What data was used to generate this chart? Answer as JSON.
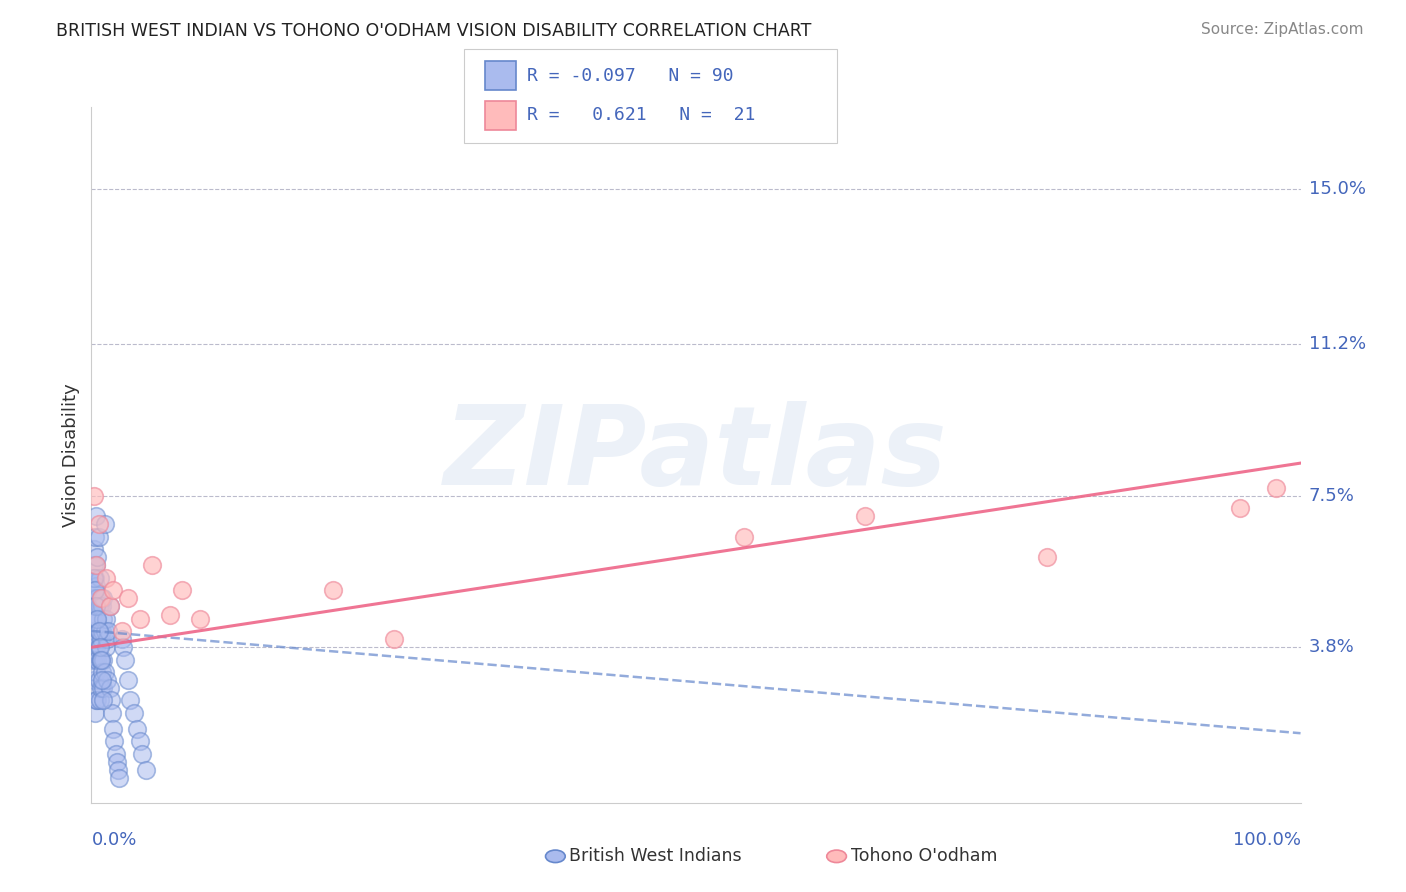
{
  "title": "BRITISH WEST INDIAN VS TOHONO O'ODHAM VISION DISABILITY CORRELATION CHART",
  "source": "Source: ZipAtlas.com",
  "ylabel": "Vision Disability",
  "color_blue_fill": "#AABBEE",
  "color_blue_edge": "#6688CC",
  "color_pink_fill": "#FFBBBB",
  "color_pink_edge": "#EE8899",
  "color_blue_line": "#6688CC",
  "color_pink_line": "#EE6688",
  "color_label": "#4466BB",
  "ytick_labels": [
    "3.8%",
    "7.5%",
    "11.2%",
    "15.0%"
  ],
  "ytick_values": [
    0.038,
    0.075,
    0.112,
    0.15
  ],
  "xlim": [
    0.0,
    1.0
  ],
  "ylim": [
    0.0,
    0.17
  ],
  "blue_slope": -0.025,
  "blue_intercept": 0.042,
  "pink_slope": 0.045,
  "pink_intercept": 0.038,
  "blue_x": [
    0.001,
    0.001,
    0.001,
    0.001,
    0.001,
    0.002,
    0.002,
    0.002,
    0.002,
    0.002,
    0.002,
    0.002,
    0.003,
    0.003,
    0.003,
    0.003,
    0.003,
    0.003,
    0.003,
    0.004,
    0.004,
    0.004,
    0.004,
    0.004,
    0.004,
    0.004,
    0.005,
    0.005,
    0.005,
    0.005,
    0.005,
    0.005,
    0.006,
    0.006,
    0.006,
    0.006,
    0.006,
    0.007,
    0.007,
    0.007,
    0.007,
    0.007,
    0.008,
    0.008,
    0.008,
    0.008,
    0.009,
    0.009,
    0.009,
    0.01,
    0.01,
    0.01,
    0.01,
    0.011,
    0.011,
    0.012,
    0.012,
    0.013,
    0.013,
    0.014,
    0.015,
    0.015,
    0.016,
    0.017,
    0.018,
    0.019,
    0.02,
    0.021,
    0.022,
    0.023,
    0.025,
    0.026,
    0.028,
    0.03,
    0.032,
    0.035,
    0.038,
    0.04,
    0.042,
    0.045,
    0.002,
    0.003,
    0.004,
    0.005,
    0.006,
    0.007,
    0.008,
    0.009,
    0.01,
    0.011
  ],
  "blue_y": [
    0.045,
    0.05,
    0.055,
    0.04,
    0.035,
    0.048,
    0.052,
    0.058,
    0.042,
    0.038,
    0.062,
    0.03,
    0.045,
    0.05,
    0.055,
    0.035,
    0.028,
    0.065,
    0.022,
    0.048,
    0.053,
    0.038,
    0.032,
    0.058,
    0.025,
    0.07,
    0.045,
    0.05,
    0.04,
    0.035,
    0.06,
    0.025,
    0.042,
    0.048,
    0.038,
    0.03,
    0.065,
    0.042,
    0.048,
    0.035,
    0.055,
    0.025,
    0.04,
    0.05,
    0.035,
    0.028,
    0.042,
    0.048,
    0.032,
    0.045,
    0.05,
    0.035,
    0.028,
    0.042,
    0.032,
    0.045,
    0.038,
    0.04,
    0.03,
    0.042,
    0.028,
    0.048,
    0.025,
    0.022,
    0.018,
    0.015,
    0.012,
    0.01,
    0.008,
    0.006,
    0.04,
    0.038,
    0.035,
    0.03,
    0.025,
    0.022,
    0.018,
    0.015,
    0.012,
    0.008,
    0.055,
    0.052,
    0.048,
    0.045,
    0.042,
    0.038,
    0.035,
    0.03,
    0.025,
    0.068
  ],
  "pink_x": [
    0.002,
    0.004,
    0.006,
    0.008,
    0.012,
    0.015,
    0.018,
    0.025,
    0.03,
    0.04,
    0.05,
    0.065,
    0.075,
    0.09,
    0.2,
    0.25,
    0.54,
    0.64,
    0.79,
    0.95,
    0.98
  ],
  "pink_y": [
    0.075,
    0.058,
    0.068,
    0.05,
    0.055,
    0.048,
    0.052,
    0.042,
    0.05,
    0.045,
    0.058,
    0.046,
    0.052,
    0.045,
    0.052,
    0.04,
    0.065,
    0.07,
    0.06,
    0.072,
    0.077
  ]
}
